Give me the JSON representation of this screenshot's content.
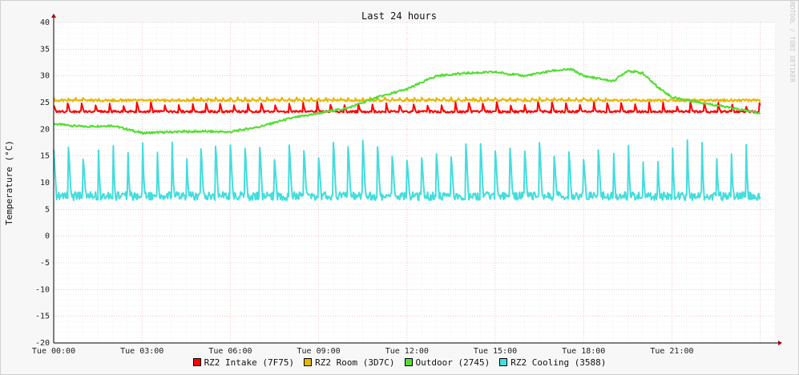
{
  "chart_data": {
    "type": "line",
    "title": "Last 24 hours",
    "ylabel": "Temperature (°C)",
    "xlabel": "",
    "watermark": "RRDTOOL / TOBI OETIKER",
    "ylim": [
      -20,
      40
    ],
    "y_ticks": [
      40,
      35,
      30,
      25,
      20,
      15,
      10,
      5,
      0,
      -5,
      -10,
      -15,
      -20
    ],
    "x_ticks": [
      "Tue 00:00",
      "Tue 03:00",
      "Tue 06:00",
      "Tue 09:00",
      "Tue 12:00",
      "Tue 15:00",
      "Tue 18:00",
      "Tue 21:00"
    ],
    "x_range_hours": [
      0,
      24.5
    ],
    "grid": true,
    "legend_position": "bottom",
    "series": [
      {
        "name": "RZ2 Intake (7F75)",
        "color": "#ff0000",
        "pattern": "periodic_spikes",
        "baseline": 23.3,
        "spike_peak": 25.2,
        "spike_period_hours": 0.47,
        "x_end_hours": 24.0
      },
      {
        "name": "RZ2 Room (3D7C)",
        "color": "#e6b800",
        "pattern": "periodic_ripple",
        "baseline": 25.4,
        "spike_peak": 26.0,
        "spike_period_hours": 0.25,
        "x_end_hours": 24.0
      },
      {
        "name": "Outdoor (2745)",
        "color": "#55dd33",
        "pattern": "smooth",
        "x": [
          0,
          1,
          2,
          3,
          4,
          5,
          6,
          7,
          8,
          9,
          10,
          11,
          12,
          13,
          14,
          15,
          16,
          17,
          17.6,
          18,
          19,
          19.5,
          20,
          20.5,
          21,
          22,
          23,
          24
        ],
        "y": [
          21,
          20.5,
          20.7,
          19.3,
          19.5,
          19.6,
          19.5,
          20.5,
          22,
          23,
          24,
          26,
          27.5,
          30,
          30.5,
          30.7,
          30,
          31,
          31.2,
          30,
          29,
          31,
          30.5,
          28,
          26,
          25,
          24,
          23
        ]
      },
      {
        "name": "RZ2 Cooling (3588)",
        "color": "#44dddd",
        "pattern": "periodic_spikes",
        "baseline": 7.5,
        "spike_peak": 18,
        "spike_period_hours": 0.5,
        "x_end_hours": 24.0
      }
    ]
  }
}
